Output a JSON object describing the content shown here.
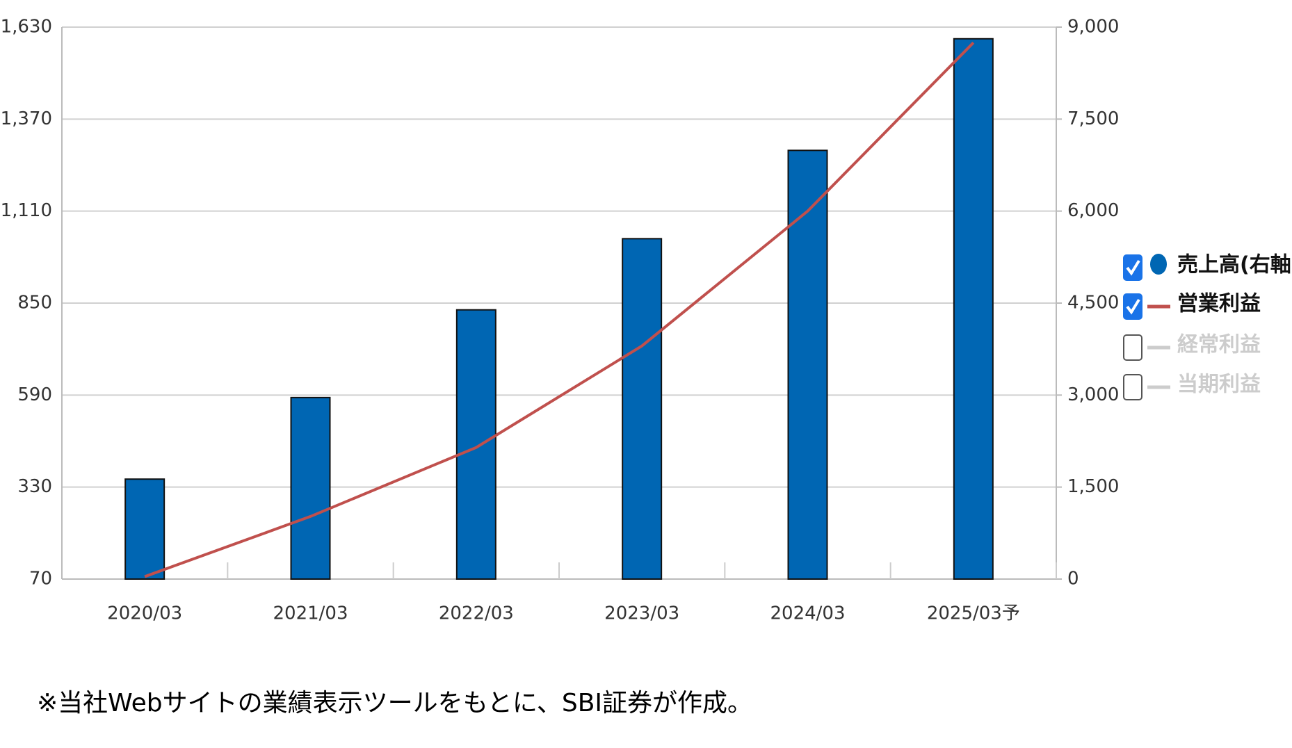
{
  "chart_data": {
    "type": "bar-line",
    "categories": [
      "2020/03",
      "2021/03",
      "2022/03",
      "2023/03",
      "2024/03",
      "2025/03予"
    ],
    "series": [
      {
        "name": "売上高(右軸)",
        "type": "bar",
        "axis": "y2",
        "color": "#0066b3",
        "values": [
          1630,
          2960,
          4390,
          5550,
          6990,
          8810
        ]
      },
      {
        "name": "営業利益",
        "type": "line",
        "axis": "y",
        "color": "#c0504d",
        "values": [
          77,
          247,
          442,
          729,
          1110,
          1586
        ]
      }
    ],
    "inactive_series": [
      {
        "name": "経常利益"
      },
      {
        "name": "当期利益"
      }
    ],
    "ylim": [
      70,
      1630
    ],
    "yticks": [
      70,
      330,
      590,
      850,
      {
        "value": 1110,
        "label": "1,110"
      },
      {
        "value": 1370,
        "label": "1,370"
      },
      {
        "value": 1630,
        "label": "1,630"
      }
    ],
    "y2lim": [
      0,
      9000
    ],
    "y2ticks": [
      0,
      {
        "value": 1500,
        "label": "1,500"
      },
      {
        "value": 3000,
        "label": "3,000"
      },
      {
        "value": 4500,
        "label": "4,500"
      },
      {
        "value": 6000,
        "label": "6,000"
      },
      {
        "value": 7500,
        "label": "7,500"
      },
      {
        "value": 9000,
        "label": "9,000"
      }
    ],
    "grid": true,
    "legend": "right",
    "note": "※当社Webサイトの業績表示ツールをもとに、SBI証券が作成。"
  }
}
